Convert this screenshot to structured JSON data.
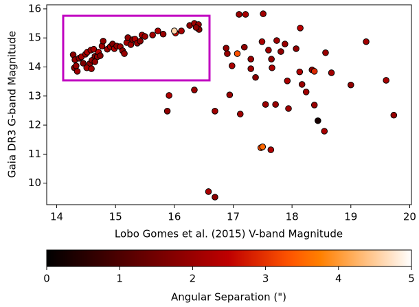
{
  "chart_data": {
    "type": "scatter",
    "xlabel": "Lobo Gomes et al. (2015) V-band Magnitude",
    "ylabel": "Gaia DR3 G-band Magnitude",
    "clabel": "Angular Separation (\")",
    "colormap": "gist_heat",
    "xlim": [
      13.83,
      20.03
    ],
    "ylim": [
      9.26,
      16.14
    ],
    "clim": [
      0,
      5
    ],
    "xticks": [
      14,
      15,
      16,
      17,
      18,
      19,
      20
    ],
    "yticks": [
      10,
      11,
      12,
      13,
      14,
      15,
      16
    ],
    "cticks": [
      0,
      1,
      2,
      3,
      4,
      5
    ],
    "x": [
      14.28,
      14.31,
      14.3,
      14.35,
      14.38,
      14.42,
      14.45,
      14.49,
      14.52,
      14.56,
      14.58,
      14.6,
      14.63,
      14.65,
      14.69,
      14.71,
      14.74,
      14.77,
      14.79,
      14.86,
      14.91,
      14.95,
      14.98,
      15.02,
      15.08,
      15.12,
      15.15,
      15.19,
      15.21,
      15.26,
      15.29,
      15.33,
      15.37,
      15.42,
      15.45,
      15.5,
      15.63,
      15.72,
      15.81,
      16.02,
      16.0,
      16.12,
      16.26,
      16.34,
      16.41,
      16.42,
      16.37,
      14.33,
      14.51,
      14.65,
      14.59,
      15.91,
      15.88,
      16.34,
      16.69,
      16.58,
      16.69,
      16.9,
      16.88,
      16.98,
      16.94,
      17.12,
      17.1,
      17.21,
      17.19,
      17.07,
      17.3,
      17.3,
      17.38,
      17.49,
      17.51,
      17.55,
      17.47,
      17.5,
      17.6,
      17.64,
      17.65,
      17.66,
      17.72,
      17.74,
      17.81,
      17.88,
      17.92,
      17.94,
      18.07,
      18.13,
      18.14,
      18.17,
      18.24,
      18.34,
      18.38,
      18.38,
      18.44,
      18.55,
      18.57,
      18.67,
      19.0,
      19.26,
      19.6,
      19.73
    ],
    "y": [
      14.42,
      14.25,
      13.97,
      13.85,
      14.3,
      14.35,
      14.13,
      14.44,
      14.51,
      14.11,
      14.58,
      14.23,
      14.61,
      14.37,
      14.35,
      14.51,
      14.39,
      14.72,
      14.89,
      14.61,
      14.7,
      14.79,
      14.63,
      14.72,
      14.7,
      14.56,
      14.46,
      14.84,
      15.01,
      14.77,
      14.94,
      14.96,
      14.82,
      14.89,
      15.1,
      15.05,
      15.1,
      15.24,
      15.13,
      15.17,
      15.24,
      15.24,
      15.43,
      15.5,
      15.46,
      15.29,
      15.36,
      14.04,
      13.97,
      14.18,
      13.94,
      13.02,
      12.48,
      13.21,
      12.48,
      9.71,
      9.52,
      14.46,
      14.65,
      14.04,
      13.04,
      12.38,
      15.81,
      15.81,
      14.68,
      14.46,
      14.27,
      13.94,
      13.64,
      14.87,
      15.83,
      12.71,
      11.22,
      11.25,
      14.58,
      11.15,
      14.27,
      13.97,
      12.71,
      14.91,
      14.53,
      14.79,
      13.52,
      12.57,
      14.63,
      13.83,
      15.34,
      13.4,
      13.14,
      13.9,
      13.85,
      12.69,
      12.15,
      11.79,
      14.49,
      13.8,
      13.38,
      14.87,
      13.54,
      12.34
    ],
    "c": [
      1.8,
      2.0,
      1.7,
      2.1,
      1.9,
      2.2,
      1.6,
      2.0,
      2.3,
      1.8,
      2.1,
      1.9,
      2.2,
      1.7,
      2.0,
      2.4,
      1.8,
      2.1,
      1.9,
      2.0,
      2.2,
      1.7,
      2.3,
      1.9,
      2.1,
      1.8,
      2.0,
      2.2,
      1.9,
      2.1,
      1.7,
      2.3,
      2.0,
      1.8,
      2.2,
      2.0,
      2.1,
      2.3,
      2.0,
      2.6,
      4.6,
      2.2,
      1.9,
      2.1,
      2.0,
      1.8,
      1.9,
      2.0,
      2.2,
      1.9,
      2.1,
      2.3,
      1.9,
      2.0,
      2.1,
      2.2,
      1.8,
      2.0,
      1.9,
      2.2,
      2.0,
      2.1,
      2.0,
      2.2,
      1.9,
      3.3,
      2.0,
      2.1,
      1.8,
      2.2,
      2.1,
      2.0,
      3.2,
      3.5,
      2.1,
      2.3,
      1.9,
      2.2,
      2.0,
      2.1,
      1.9,
      2.0,
      2.2,
      2.1,
      1.9,
      2.3,
      2.4,
      2.0,
      2.1,
      1.8,
      2.9,
      2.0,
      0.3,
      2.2,
      2.0,
      2.1,
      1.9,
      2.1,
      2.2,
      2.0
    ]
  }
}
